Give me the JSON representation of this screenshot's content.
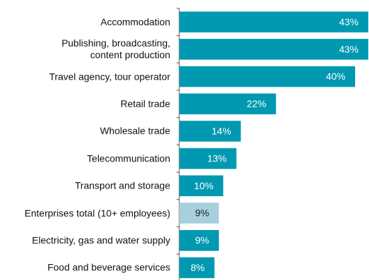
{
  "chart_data": {
    "type": "barh",
    "categories": [
      "Accommodation",
      "Publishing, broadcasting,\ncontent production",
      "Travel agency, tour operator",
      "Retail trade",
      "Wholesale trade",
      "Telecommunication",
      "Transport and storage",
      "Enterprises total (10+ employees)",
      "Electricity, gas and water supply",
      "Food and beverage services"
    ],
    "values": [
      43,
      43,
      40,
      22,
      14,
      13,
      10,
      9,
      9,
      8
    ],
    "value_labels": [
      "43%",
      "43%",
      "40%",
      "22%",
      "14%",
      "13%",
      "10%",
      "9%",
      "9%",
      "8%"
    ],
    "colors": [
      "#0099b1",
      "#0099b1",
      "#0099b1",
      "#0099b1",
      "#0099b1",
      "#0099b1",
      "#0099b1",
      "#a7cfdd",
      "#0099b1",
      "#0099b1"
    ],
    "value_label_colors": [
      "#ffffff",
      "#ffffff",
      "#ffffff",
      "#ffffff",
      "#ffffff",
      "#ffffff",
      "#ffffff",
      "#222222",
      "#ffffff",
      "#ffffff"
    ],
    "xlim": [
      0,
      43
    ]
  }
}
